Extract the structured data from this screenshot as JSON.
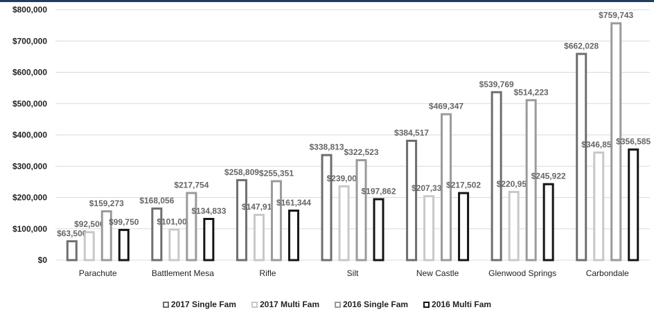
{
  "colors": {
    "top_rule": "#1f3b63",
    "grid": "#d9d9d9",
    "series": [
      "#6e6e6e",
      "#c8c8c8",
      "#9a9a9a",
      "#141414"
    ],
    "label": "#666666",
    "axis_text": "#222222"
  },
  "chart_data": {
    "type": "bar",
    "title": "",
    "xlabel": "",
    "ylabel": "",
    "ylim": [
      0,
      800000
    ],
    "yticks": [
      "$0",
      "$100,000",
      "$200,000",
      "$300,000",
      "$400,000",
      "$500,000",
      "$600,000",
      "$700,000",
      "$800,000"
    ],
    "ytick_values": [
      0,
      100000,
      200000,
      300000,
      400000,
      500000,
      600000,
      700000,
      800000
    ],
    "grid": true,
    "legend_position": "bottom",
    "categories": [
      "Parachute",
      "Battlement Mesa",
      "Rifle",
      "Silt",
      "New Castle",
      "Glenwood Springs",
      "Carbondale"
    ],
    "series": [
      {
        "name": "2017 Single Fam",
        "values": [
          63500,
          168056,
          258809,
          338813,
          384517,
          539769,
          662028
        ],
        "labels": [
          "$63,500",
          "$168,056",
          "$258,809",
          "$338,813",
          "$384,517",
          "$539,769",
          "$662,028"
        ]
      },
      {
        "name": "2017 Multi Fam",
        "values": [
          92500,
          101000,
          147914,
          239000,
          207333,
          220950,
          346857
        ],
        "labels": [
          "$92,500",
          "$101,000",
          "$147,914",
          "$239,000",
          "$207,333",
          "$220,950",
          "$346,857"
        ]
      },
      {
        "name": "2016 Single Fam",
        "values": [
          159273,
          217754,
          255351,
          322523,
          469347,
          514223,
          759743
        ],
        "labels": [
          "$159,273",
          "$217,754",
          "$255,351",
          "$322,523",
          "$469,347",
          "$514,223",
          "$759,743"
        ]
      },
      {
        "name": "2016 Multi Fam",
        "values": [
          99750,
          134833,
          161344,
          197862,
          217502,
          245922,
          356585
        ],
        "labels": [
          "$99,750",
          "$134,833",
          "$161,344",
          "$197,862",
          "$217,502",
          "$245,922",
          "$356,585"
        ]
      }
    ]
  }
}
